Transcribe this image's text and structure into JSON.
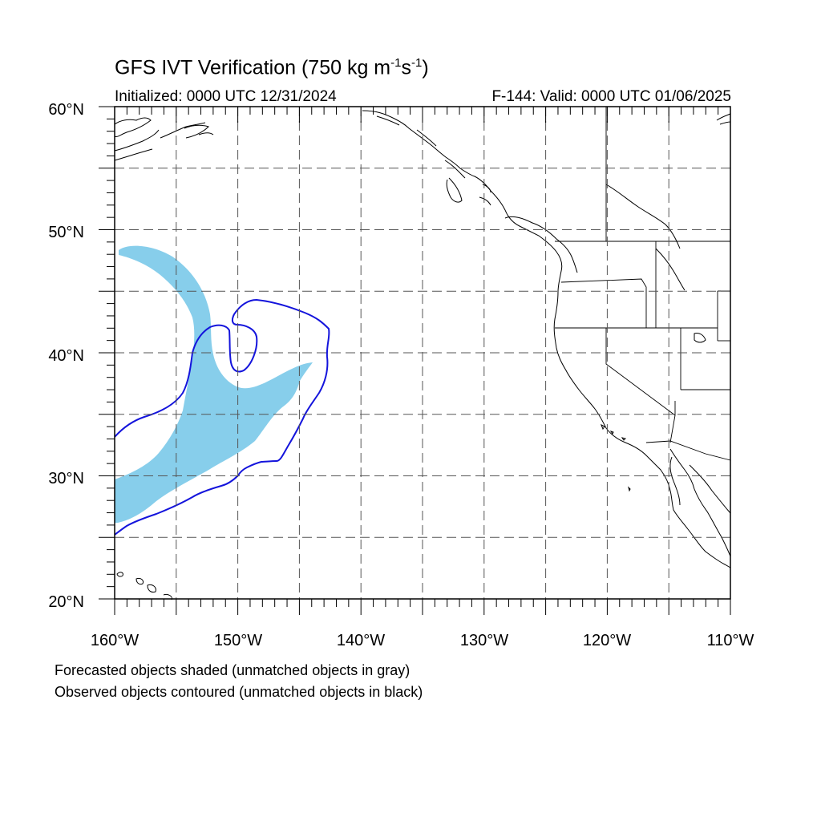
{
  "title": {
    "main": "GFS IVT Verification (750 kg m",
    "sup1": "-1",
    "mid": "s",
    "sup2": "-1",
    "end": ")"
  },
  "subtitle_left": "Initialized: 0000 UTC 12/31/2024",
  "subtitle_right": "F-144: Valid: 0000 UTC 01/06/2025",
  "notes": [
    "Forecasted objects shaded (unmatched objects in gray)",
    "Observed objects contoured (unmatched objects in black)"
  ],
  "map": {
    "extent": {
      "lon_min": -160,
      "lon_max": -110,
      "lat_min": 20,
      "lat_max": 60
    },
    "lat_labels": [
      "20°N",
      "30°N",
      "40°N",
      "50°N",
      "60°N"
    ],
    "lon_labels": [
      "160°W",
      "150°W",
      "140°W",
      "130°W",
      "120°W",
      "110°W"
    ],
    "gridlines": "dashed every 5°",
    "colors": {
      "forecast_fill": "#87ceeb",
      "observed_contour": "#1414dc",
      "coastline": "#000000",
      "grid": "#555555"
    }
  }
}
